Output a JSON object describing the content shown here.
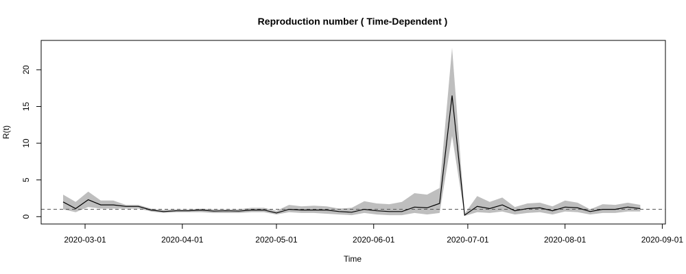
{
  "chart_data": {
    "type": "line",
    "title": "Reproduction number ( Time-Dependent )",
    "xlabel": "Time",
    "ylabel": "R(t)",
    "x_ticks": [
      "2020-03-01",
      "2020-04-01",
      "2020-05-01",
      "2020-06-01",
      "2020-07-01",
      "2020-08-01",
      "2020-09-01"
    ],
    "y_ticks": [
      0,
      5,
      10,
      15,
      20
    ],
    "xlim": [
      "2020-02-16",
      "2020-09-02"
    ],
    "ylim": [
      -1,
      24
    ],
    "reference_line": {
      "y": 1,
      "style": "dashed",
      "color": "#555555"
    },
    "grid": false,
    "legend": "none",
    "colors": {
      "line": "#000000",
      "band": "#bebebe"
    },
    "series": [
      {
        "x": [
          "2020-02-23",
          "2020-02-27",
          "2020-03-02",
          "2020-03-06",
          "2020-03-10",
          "2020-03-14",
          "2020-03-18",
          "2020-03-22",
          "2020-03-26",
          "2020-03-30",
          "2020-04-03",
          "2020-04-07",
          "2020-04-11",
          "2020-04-15",
          "2020-04-19",
          "2020-04-23",
          "2020-04-27",
          "2020-05-01",
          "2020-05-05",
          "2020-05-09",
          "2020-05-13",
          "2020-05-17",
          "2020-05-21",
          "2020-05-25",
          "2020-05-29",
          "2020-06-02",
          "2020-06-06",
          "2020-06-10",
          "2020-06-14",
          "2020-06-18",
          "2020-06-22",
          "2020-06-26",
          "2020-06-30",
          "2020-07-04",
          "2020-07-08",
          "2020-07-12",
          "2020-07-16",
          "2020-07-20",
          "2020-07-24",
          "2020-07-28",
          "2020-08-01",
          "2020-08-05",
          "2020-08-09",
          "2020-08-13",
          "2020-08-17",
          "2020-08-21",
          "2020-08-25"
        ],
        "values": [
          2.0,
          1.1,
          2.3,
          1.6,
          1.6,
          1.4,
          1.4,
          0.9,
          0.7,
          0.8,
          0.8,
          0.9,
          0.75,
          0.8,
          0.75,
          0.9,
          0.9,
          0.5,
          1.0,
          0.9,
          0.9,
          0.9,
          0.7,
          0.6,
          1.0,
          0.8,
          0.7,
          0.7,
          1.3,
          1.2,
          1.8,
          16.5,
          0.2,
          1.4,
          1.1,
          1.6,
          0.8,
          1.1,
          1.2,
          0.8,
          1.3,
          1.2,
          0.7,
          1.0,
          1.0,
          1.3,
          1.1
        ],
        "lower": [
          1.0,
          0.6,
          1.3,
          1.1,
          1.1,
          1.1,
          1.1,
          0.7,
          0.5,
          0.6,
          0.6,
          0.6,
          0.5,
          0.5,
          0.5,
          0.6,
          0.6,
          0.3,
          0.6,
          0.5,
          0.5,
          0.4,
          0.3,
          0.2,
          0.5,
          0.3,
          0.2,
          0.2,
          0.5,
          0.3,
          0.5,
          11.0,
          0.1,
          0.6,
          0.5,
          0.7,
          0.3,
          0.5,
          0.6,
          0.3,
          0.7,
          0.6,
          0.3,
          0.5,
          0.5,
          0.7,
          0.7
        ],
        "upper": [
          3.0,
          2.0,
          3.4,
          2.2,
          2.2,
          1.6,
          1.6,
          1.1,
          0.9,
          1.0,
          1.0,
          1.1,
          1.0,
          1.0,
          1.0,
          1.2,
          1.2,
          0.8,
          1.6,
          1.4,
          1.5,
          1.4,
          1.1,
          1.2,
          2.1,
          1.8,
          1.7,
          2.0,
          3.2,
          3.0,
          3.9,
          23.0,
          0.4,
          2.8,
          2.0,
          2.6,
          1.3,
          1.8,
          1.9,
          1.4,
          2.2,
          1.9,
          1.0,
          1.7,
          1.6,
          1.9,
          1.6
        ]
      }
    ]
  }
}
